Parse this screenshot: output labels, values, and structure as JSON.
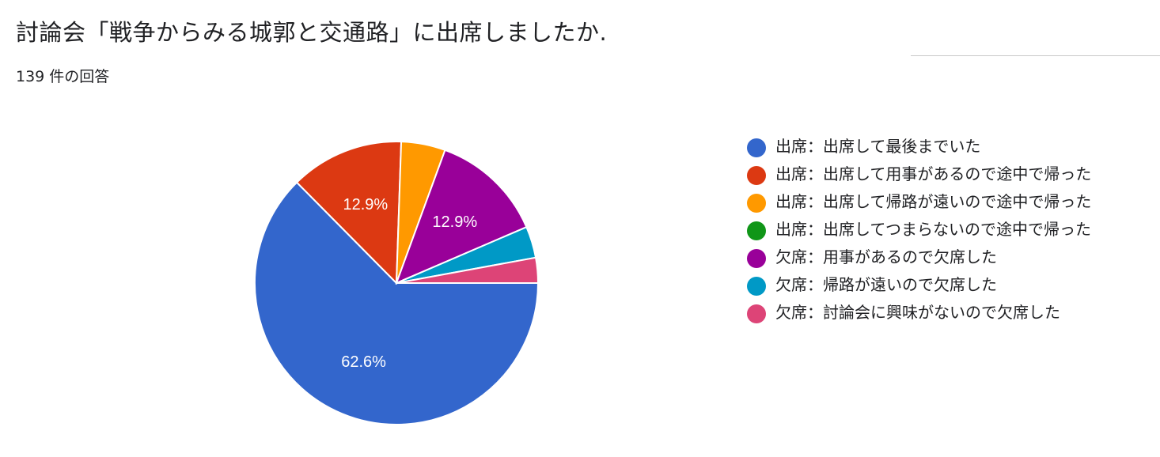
{
  "header": {
    "title": "討論会「戦争からみる城郭と交通路」に出席しましたか.",
    "response_count": "139 件の回答"
  },
  "chart_data": {
    "type": "pie",
    "title": "討論会「戦争からみる城郭と交通路」に出席しましたか.",
    "subtitle": "139 件の回答",
    "total": 139,
    "legend_position": "right",
    "start_angle_deg": 0,
    "direction": "clockwise",
    "categories": [
      "出席：出席して最後までいた",
      "出席：出席して用事があるので途中で帰った",
      "出席：出席して帰路が遠いので途中で帰った",
      "出席：出席してつまらないので途中で帰った",
      "欠席：用事があるので欠席した",
      "欠席：帰路が遠いので欠席した",
      "欠席：討論会に興味がないので欠席した"
    ],
    "values": [
      87,
      18,
      7,
      0,
      18,
      5,
      4
    ],
    "percentages": [
      62.6,
      12.9,
      5.0,
      0.0,
      12.9,
      3.6,
      2.9
    ],
    "visible_labels": [
      "62.6%",
      "12.9%",
      "",
      "",
      "12.9%",
      "",
      ""
    ],
    "colors": [
      "#3366cc",
      "#dc3912",
      "#ff9900",
      "#109618",
      "#990099",
      "#0099c6",
      "#dd4477"
    ]
  }
}
